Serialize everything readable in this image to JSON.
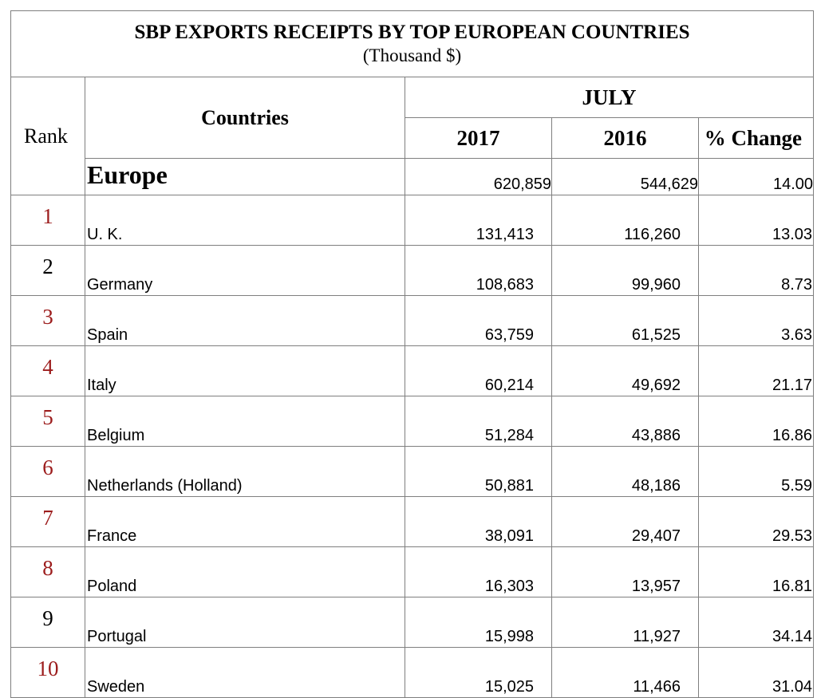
{
  "title": {
    "main": "SBP EXPORTS RECEIPTS BY TOP EUROPEAN COUNTRIES",
    "unit": "(Thousand  $)"
  },
  "headers": {
    "rank": "Rank",
    "countries": "Countries",
    "month": "JULY",
    "year1": "2017",
    "year2": "2016",
    "change": "% Change"
  },
  "total": {
    "name": "Europe",
    "y2017": "620,859",
    "y2016": "544,629",
    "change": "14.00"
  },
  "rows": [
    {
      "rank": "1",
      "rank_color": "red",
      "country": "U. K.",
      "y2017": "131,413",
      "y2016": "116,260",
      "change": "13.03"
    },
    {
      "rank": "2",
      "rank_color": "black",
      "country": "Germany",
      "y2017": "108,683",
      "y2016": "99,960",
      "change": "8.73"
    },
    {
      "rank": "3",
      "rank_color": "red",
      "country": "Spain",
      "y2017": "63,759",
      "y2016": "61,525",
      "change": "3.63"
    },
    {
      "rank": "4",
      "rank_color": "red",
      "country": "Italy",
      "y2017": "60,214",
      "y2016": "49,692",
      "change": "21.17"
    },
    {
      "rank": "5",
      "rank_color": "red",
      "country": "Belgium",
      "y2017": "51,284",
      "y2016": "43,886",
      "change": "16.86"
    },
    {
      "rank": "6",
      "rank_color": "red",
      "country": "Netherlands (Holland)",
      "y2017": "50,881",
      "y2016": "48,186",
      "change": "5.59"
    },
    {
      "rank": "7",
      "rank_color": "red",
      "country": "France",
      "y2017": "38,091",
      "y2016": "29,407",
      "change": "29.53"
    },
    {
      "rank": "8",
      "rank_color": "red",
      "country": "Poland",
      "y2017": "16,303",
      "y2016": "13,957",
      "change": "16.81"
    },
    {
      "rank": "9",
      "rank_color": "black",
      "country": "Portugal",
      "y2017": "15,998",
      "y2016": "11,927",
      "change": "34.14"
    },
    {
      "rank": "10",
      "rank_color": "red",
      "country": "Sweden",
      "y2017": "15,025",
      "y2016": "11,466",
      "change": "31.04"
    }
  ],
  "colors": {
    "rank_red": "#9c1c1c",
    "rank_black": "#000000",
    "grid": "#7f7f7f"
  }
}
